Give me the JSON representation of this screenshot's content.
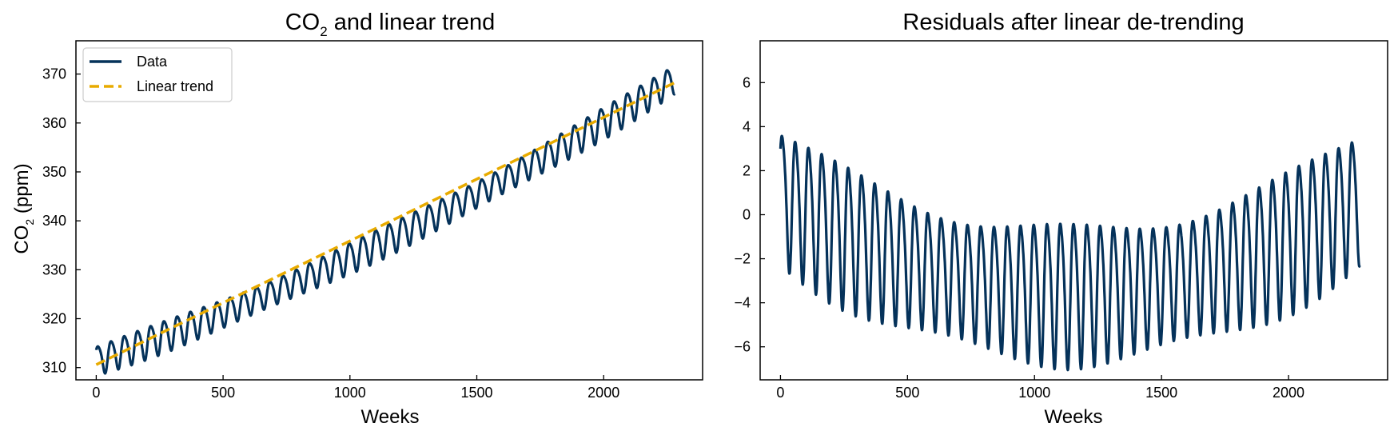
{
  "colors": {
    "data": "#05325a",
    "trend": "#e8ab00",
    "axes": "#000000"
  },
  "chart_data": [
    {
      "type": "line",
      "title_main": "CO",
      "title_sub": "2",
      "title_rest": " and linear trend",
      "xlabel": "Weeks",
      "ylabel_main": "CO",
      "ylabel_sub": "2",
      "ylabel_rest": " (ppm)",
      "xlim": [
        -80,
        2390
      ],
      "ylim": [
        307.5,
        376.8
      ],
      "xticks": [
        0,
        500,
        1000,
        1500,
        2000
      ],
      "yticks": [
        310,
        320,
        330,
        340,
        350,
        360,
        370
      ],
      "legend_position": "upper-left",
      "series": [
        {
          "name": "Data",
          "style": "solid",
          "color": "#05325a",
          "model": {
            "x_start": 0,
            "x_end": 2280,
            "step": 1,
            "trend_intercept": 310.6,
            "trend_slope": 0.02528,
            "residual_c0": 0.97,
            "residual_c1": -0.00757,
            "residual_c2": 3.3e-06,
            "seasonal_amplitude": 2.9,
            "seasonal_period_weeks": 52.18,
            "seasonal_phase": 0.6
          }
        },
        {
          "name": "Linear trend",
          "style": "dashed",
          "color": "#e8ab00",
          "x": [
            0,
            2280
          ],
          "y": [
            310.6,
            368.24
          ]
        }
      ]
    },
    {
      "type": "line",
      "title": "Residuals after linear de-trending",
      "xlabel": "Weeks",
      "xlim": [
        -80,
        2390
      ],
      "ylim": [
        -7.5,
        7.9
      ],
      "xticks": [
        0,
        500,
        1000,
        1500,
        2000
      ],
      "yticks": [
        -6,
        -4,
        -2,
        0,
        2,
        4,
        6
      ],
      "ytick_labels": [
        "−6",
        "−4",
        "−2",
        "0",
        "2",
        "4",
        "6"
      ],
      "series": [
        {
          "style": "solid",
          "color": "#05325a",
          "model": {
            "x_start": 0,
            "x_end": 2280,
            "step": 1,
            "residual_c0": 0.97,
            "residual_c1": -0.00757,
            "residual_c2": 3.3e-06,
            "seasonal_amplitude": 2.9,
            "seasonal_period_weeks": 52.18,
            "seasonal_phase": 0.6
          }
        }
      ]
    }
  ]
}
